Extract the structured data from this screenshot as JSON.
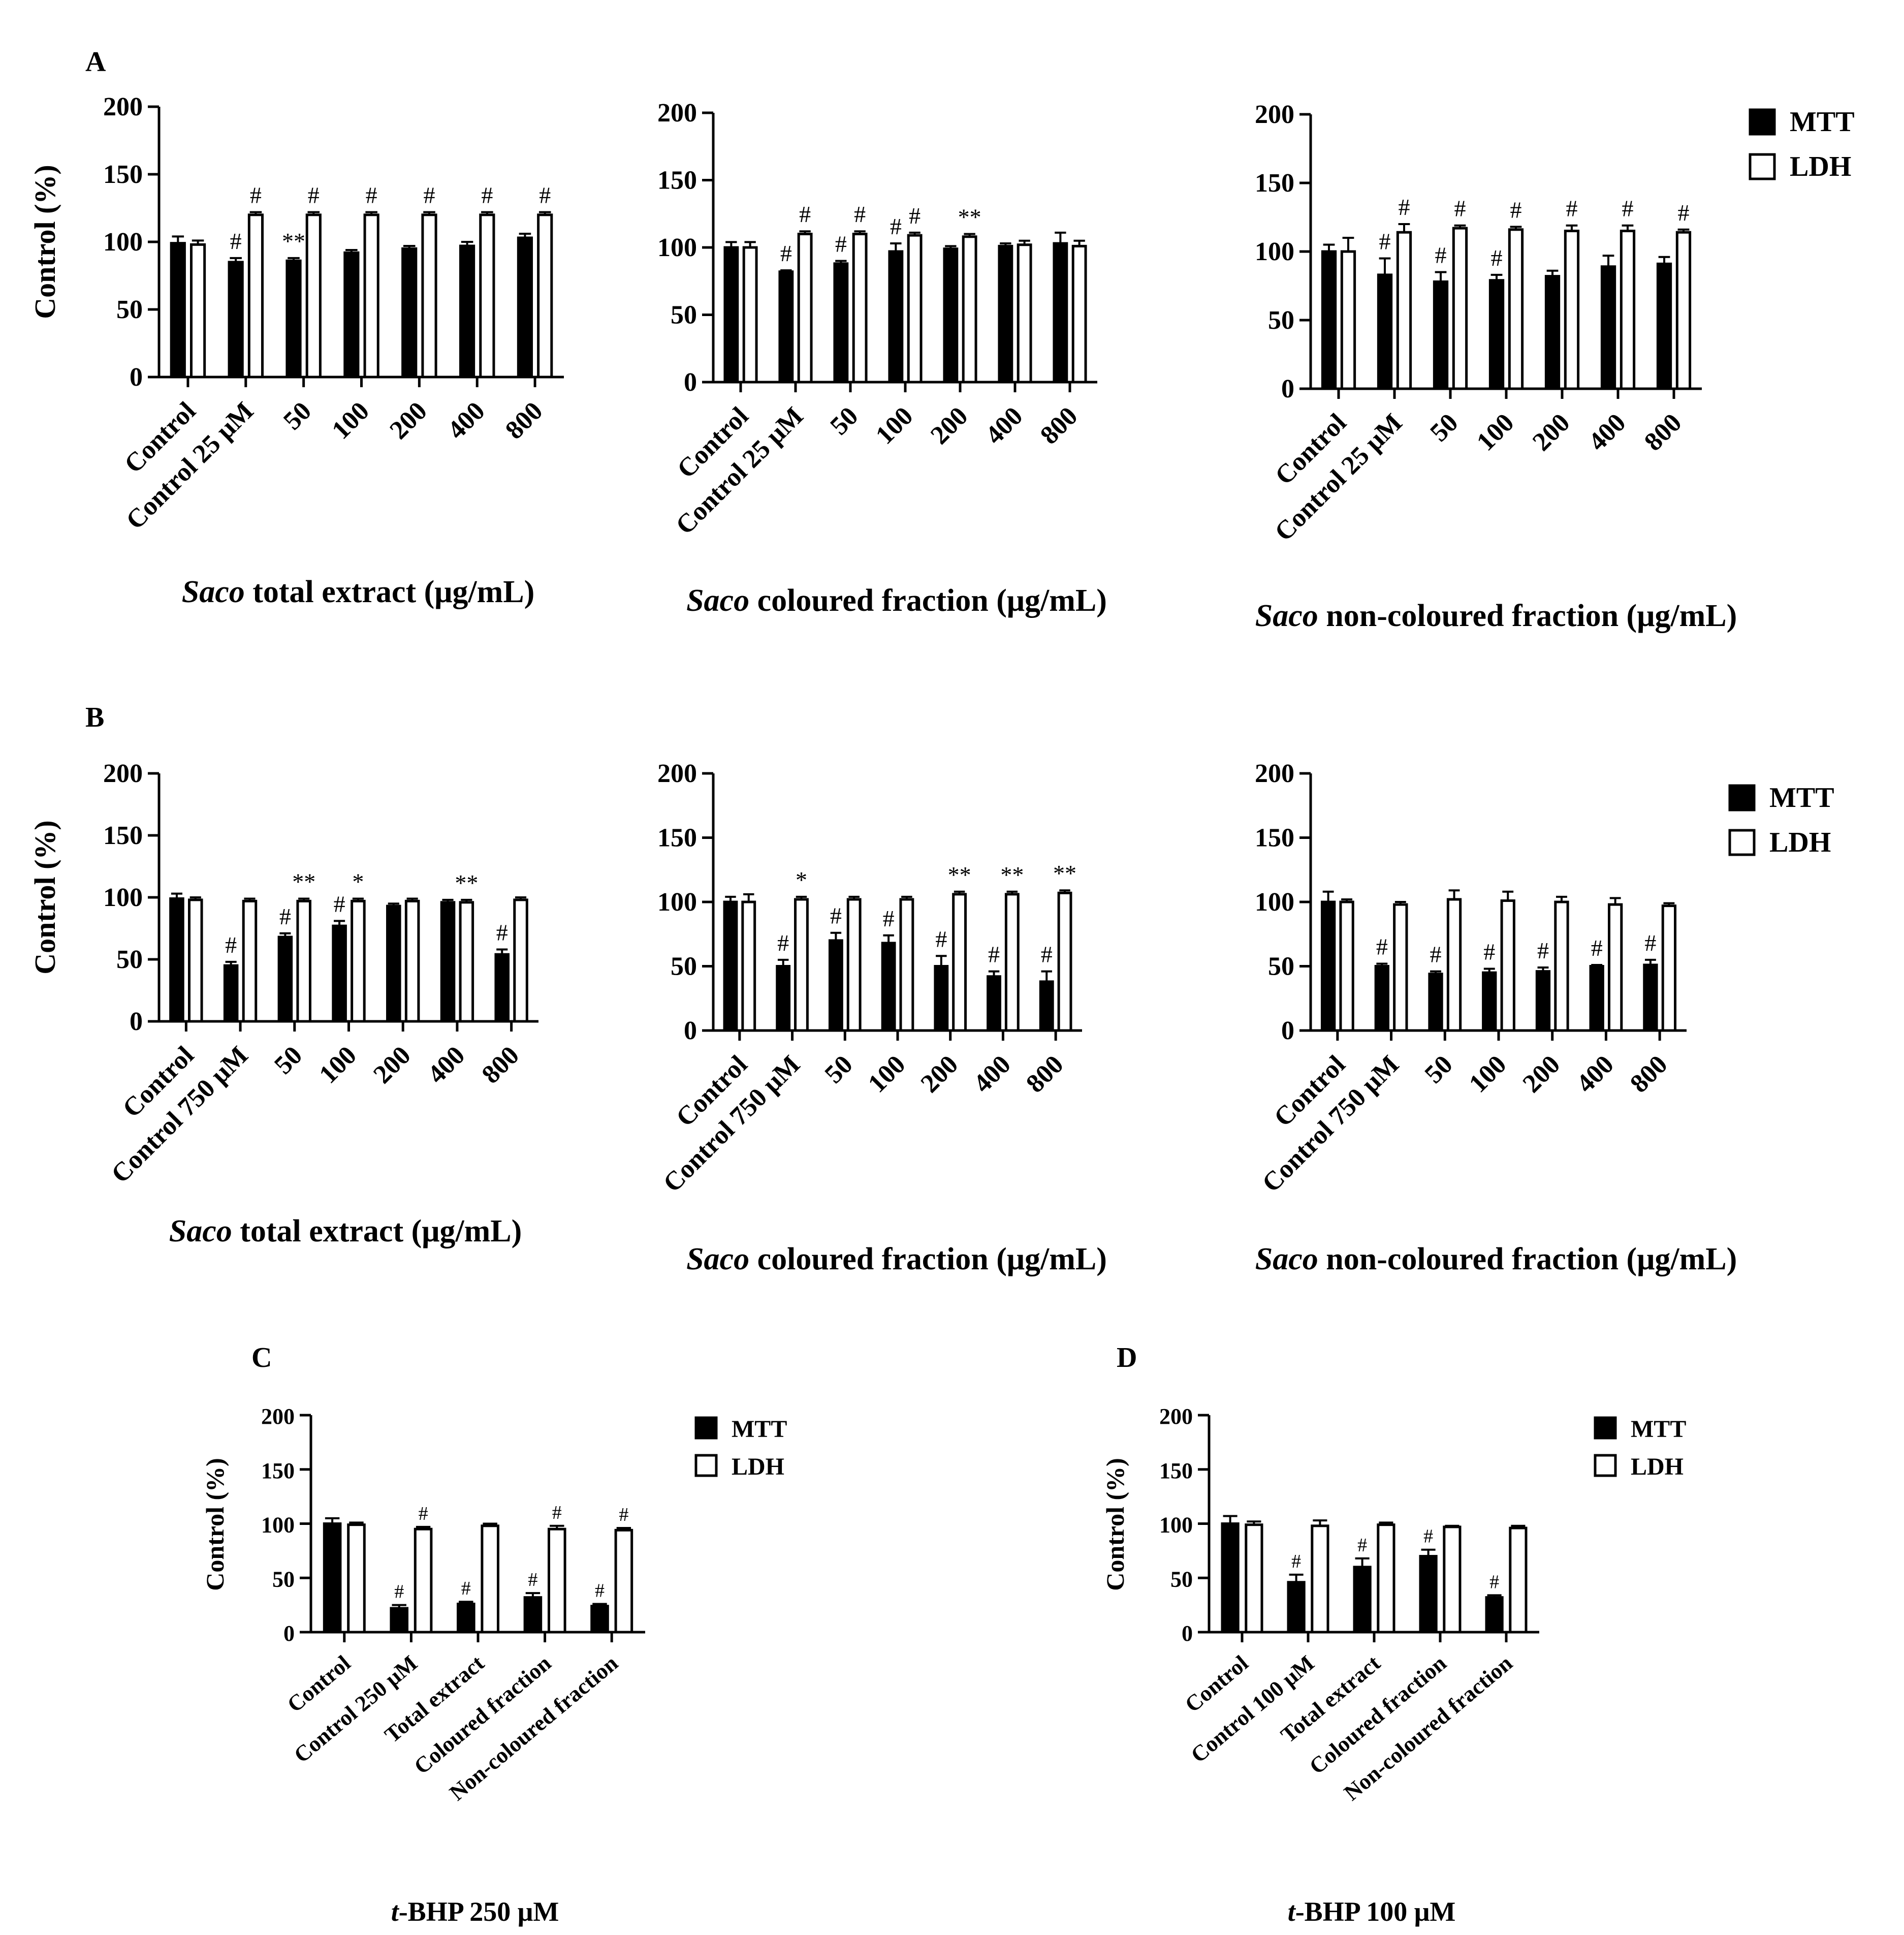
{
  "figure": {
    "colors": {
      "mtt": "#000000",
      "ldh": "#ffffff",
      "outline": "#000000"
    }
  },
  "chart_data": [
    {
      "id": "A1",
      "panel_label": "A",
      "type": "bar",
      "title": "",
      "xlabel_italic": "Saco",
      "xlabel_rest": " total extract (μg/mL)",
      "ylabel": "Control (%)",
      "ylim": [
        0,
        200
      ],
      "yticks": [
        0,
        50,
        100,
        150,
        200
      ],
      "categories": [
        "Control",
        "Control 25 μM",
        "50",
        "100",
        "200",
        "400",
        "800"
      ],
      "series": [
        {
          "name": "MTT",
          "values": [
            99,
            85,
            86,
            92,
            95,
            97,
            103
          ],
          "errors": [
            5,
            3,
            2,
            2,
            2,
            3,
            3
          ],
          "annotations": [
            "",
            "#",
            "**",
            "",
            "",
            "",
            ""
          ]
        },
        {
          "name": "LDH",
          "values": [
            98,
            120,
            120,
            120,
            120,
            120,
            120
          ],
          "errors": [
            3,
            2,
            2,
            2,
            2,
            2,
            2
          ],
          "annotations": [
            "",
            "#",
            "#",
            "#",
            "#",
            "#",
            "#"
          ]
        }
      ],
      "legend": {
        "show": true,
        "position": "right",
        "labels": [
          "MTT",
          "LDH"
        ]
      }
    },
    {
      "id": "A2",
      "type": "bar",
      "xlabel_italic": "Saco",
      "xlabel_rest": " coloured fraction (μg/mL)",
      "ylim": [
        0,
        200
      ],
      "yticks": [
        0,
        50,
        100,
        150,
        200
      ],
      "categories": [
        "Control",
        "Control 25 μM",
        "50",
        "100",
        "200",
        "400",
        "800"
      ],
      "series": [
        {
          "name": "MTT",
          "values": [
            100,
            82,
            88,
            97,
            99,
            101,
            103
          ],
          "errors": [
            4,
            1,
            2,
            6,
            2,
            2,
            8
          ],
          "annotations": [
            "",
            "#",
            "#",
            "#",
            "",
            "",
            ""
          ]
        },
        {
          "name": "LDH",
          "values": [
            100,
            110,
            110,
            109,
            108,
            102,
            101
          ],
          "errors": [
            4,
            2,
            2,
            2,
            2,
            3,
            4
          ],
          "annotations": [
            "",
            "#",
            "#",
            "#",
            "**",
            "",
            ""
          ]
        }
      ]
    },
    {
      "id": "A3",
      "type": "bar",
      "xlabel_italic": "Saco",
      "xlabel_rest": " non-coloured fraction (μg/mL)",
      "ylim": [
        0,
        200
      ],
      "yticks": [
        0,
        50,
        100,
        150,
        200
      ],
      "categories": [
        "Control",
        "Control 25 μM",
        "50",
        "100",
        "200",
        "400",
        "800"
      ],
      "series": [
        {
          "name": "MTT",
          "values": [
            100,
            83,
            78,
            79,
            82,
            89,
            91
          ],
          "errors": [
            5,
            12,
            7,
            4,
            4,
            8,
            5
          ],
          "annotations": [
            "",
            "#",
            "#",
            "#",
            "",
            "",
            ""
          ]
        },
        {
          "name": "LDH",
          "values": [
            100,
            114,
            117,
            116,
            115,
            115,
            114
          ],
          "errors": [
            10,
            6,
            2,
            2,
            4,
            4,
            2
          ],
          "annotations": [
            "",
            "#",
            "#",
            "#",
            "#",
            "#",
            "#"
          ]
        }
      ]
    },
    {
      "id": "B1",
      "panel_label": "B",
      "type": "bar",
      "xlabel_italic": "Saco",
      "xlabel_rest": " total extract (μg/mL)",
      "ylabel": "Control (%)",
      "ylim": [
        0,
        200
      ],
      "yticks": [
        0,
        50,
        100,
        150,
        200
      ],
      "categories": [
        "Control",
        "Control 750 μM",
        "50",
        "100",
        "200",
        "400",
        "800"
      ],
      "series": [
        {
          "name": "MTT",
          "values": [
            99,
            45,
            68,
            77,
            93,
            96,
            54
          ],
          "errors": [
            4,
            3,
            3,
            4,
            2,
            2,
            4
          ],
          "annotations": [
            "",
            "#",
            "#",
            "#",
            "",
            "",
            "#"
          ]
        },
        {
          "name": "LDH",
          "values": [
            98,
            97,
            97,
            97,
            97,
            96,
            98
          ],
          "errors": [
            2,
            2,
            2,
            2,
            2,
            2,
            2
          ],
          "annotations": [
            "",
            "",
            "**",
            "*",
            "",
            "**",
            ""
          ]
        }
      ],
      "legend": {
        "show": true,
        "position": "right",
        "labels": [
          "MTT",
          "LDH"
        ]
      }
    },
    {
      "id": "B2",
      "type": "bar",
      "xlabel_italic": "Saco",
      "xlabel_rest": " coloured fraction (μg/mL)",
      "ylim": [
        0,
        200
      ],
      "yticks": [
        0,
        50,
        100,
        150,
        200
      ],
      "categories": [
        "Control",
        "Control 750 μM",
        "50",
        "100",
        "200",
        "400",
        "800"
      ],
      "series": [
        {
          "name": "MTT",
          "values": [
            100,
            50,
            70,
            68,
            50,
            42,
            38
          ],
          "errors": [
            4,
            5,
            6,
            6,
            8,
            4,
            8
          ],
          "annotations": [
            "",
            "#",
            "#",
            "#",
            "#",
            "#",
            "#"
          ]
        },
        {
          "name": "LDH",
          "values": [
            100,
            102,
            102,
            102,
            106,
            106,
            107
          ],
          "errors": [
            6,
            2,
            2,
            2,
            2,
            2,
            2
          ],
          "annotations": [
            "",
            "*",
            "",
            "",
            "**",
            "**",
            "**"
          ]
        }
      ]
    },
    {
      "id": "B3",
      "type": "bar",
      "xlabel_italic": "Saco",
      "xlabel_rest": " non-coloured fraction (μg/mL)",
      "ylim": [
        0,
        200
      ],
      "yticks": [
        0,
        50,
        100,
        150,
        200
      ],
      "categories": [
        "Control",
        "Control 750 μM",
        "50",
        "100",
        "200",
        "400",
        "800"
      ],
      "series": [
        {
          "name": "MTT",
          "values": [
            100,
            50,
            44,
            45,
            46,
            50,
            51
          ],
          "errors": [
            8,
            2,
            2,
            3,
            3,
            1,
            4
          ],
          "annotations": [
            "",
            "#",
            "#",
            "#",
            "#",
            "#",
            "#"
          ]
        },
        {
          "name": "LDH",
          "values": [
            100,
            98,
            102,
            101,
            100,
            98,
            97
          ],
          "errors": [
            2,
            2,
            7,
            7,
            4,
            5,
            2
          ],
          "annotations": [
            "",
            "",
            "",
            "",
            "",
            "",
            ""
          ]
        }
      ]
    },
    {
      "id": "C",
      "panel_label": "C",
      "type": "bar",
      "xlabel_italic": "t",
      "xlabel_rest": "-BHP 250 μM",
      "ylabel": "Control (%)",
      "ylim": [
        0,
        200
      ],
      "yticks": [
        0,
        50,
        100,
        150,
        200
      ],
      "categories": [
        "Control",
        "Control 250 μM",
        "Total extract",
        "Coloured fraction",
        "Non-coloured fraction"
      ],
      "series": [
        {
          "name": "MTT",
          "values": [
            100,
            22,
            26,
            32,
            24
          ],
          "errors": [
            5,
            3,
            2,
            4,
            2
          ],
          "annotations": [
            "",
            "#",
            "#",
            "#",
            "#"
          ]
        },
        {
          "name": "LDH",
          "values": [
            99,
            95,
            98,
            95,
            94
          ],
          "errors": [
            2,
            2,
            2,
            3,
            2
          ],
          "annotations": [
            "",
            "#",
            "",
            "#",
            "#"
          ]
        }
      ],
      "legend": {
        "show": true,
        "position": "right",
        "labels": [
          "MTT",
          "LDH"
        ]
      }
    },
    {
      "id": "D",
      "panel_label": "D",
      "type": "bar",
      "xlabel_italic": "t",
      "xlabel_rest": "-BHP 100 μM",
      "ylabel": "Control (%)",
      "ylim": [
        0,
        200
      ],
      "yticks": [
        0,
        50,
        100,
        150,
        200
      ],
      "categories": [
        "Control",
        "Control 100 μM",
        "Total extract",
        "Coloured fraction",
        "Non-coloured fraction"
      ],
      "series": [
        {
          "name": "MTT",
          "values": [
            100,
            46,
            60,
            70,
            32
          ],
          "errors": [
            7,
            7,
            8,
            6,
            2
          ],
          "annotations": [
            "",
            "#",
            "#",
            "#",
            "#"
          ]
        },
        {
          "name": "LDH",
          "values": [
            99,
            98,
            99,
            97,
            96
          ],
          "errors": [
            3,
            5,
            2,
            1,
            2
          ],
          "annotations": [
            "",
            "",
            "",
            "",
            ""
          ]
        }
      ],
      "legend": {
        "show": true,
        "position": "right",
        "labels": [
          "MTT",
          "LDH"
        ]
      }
    }
  ]
}
